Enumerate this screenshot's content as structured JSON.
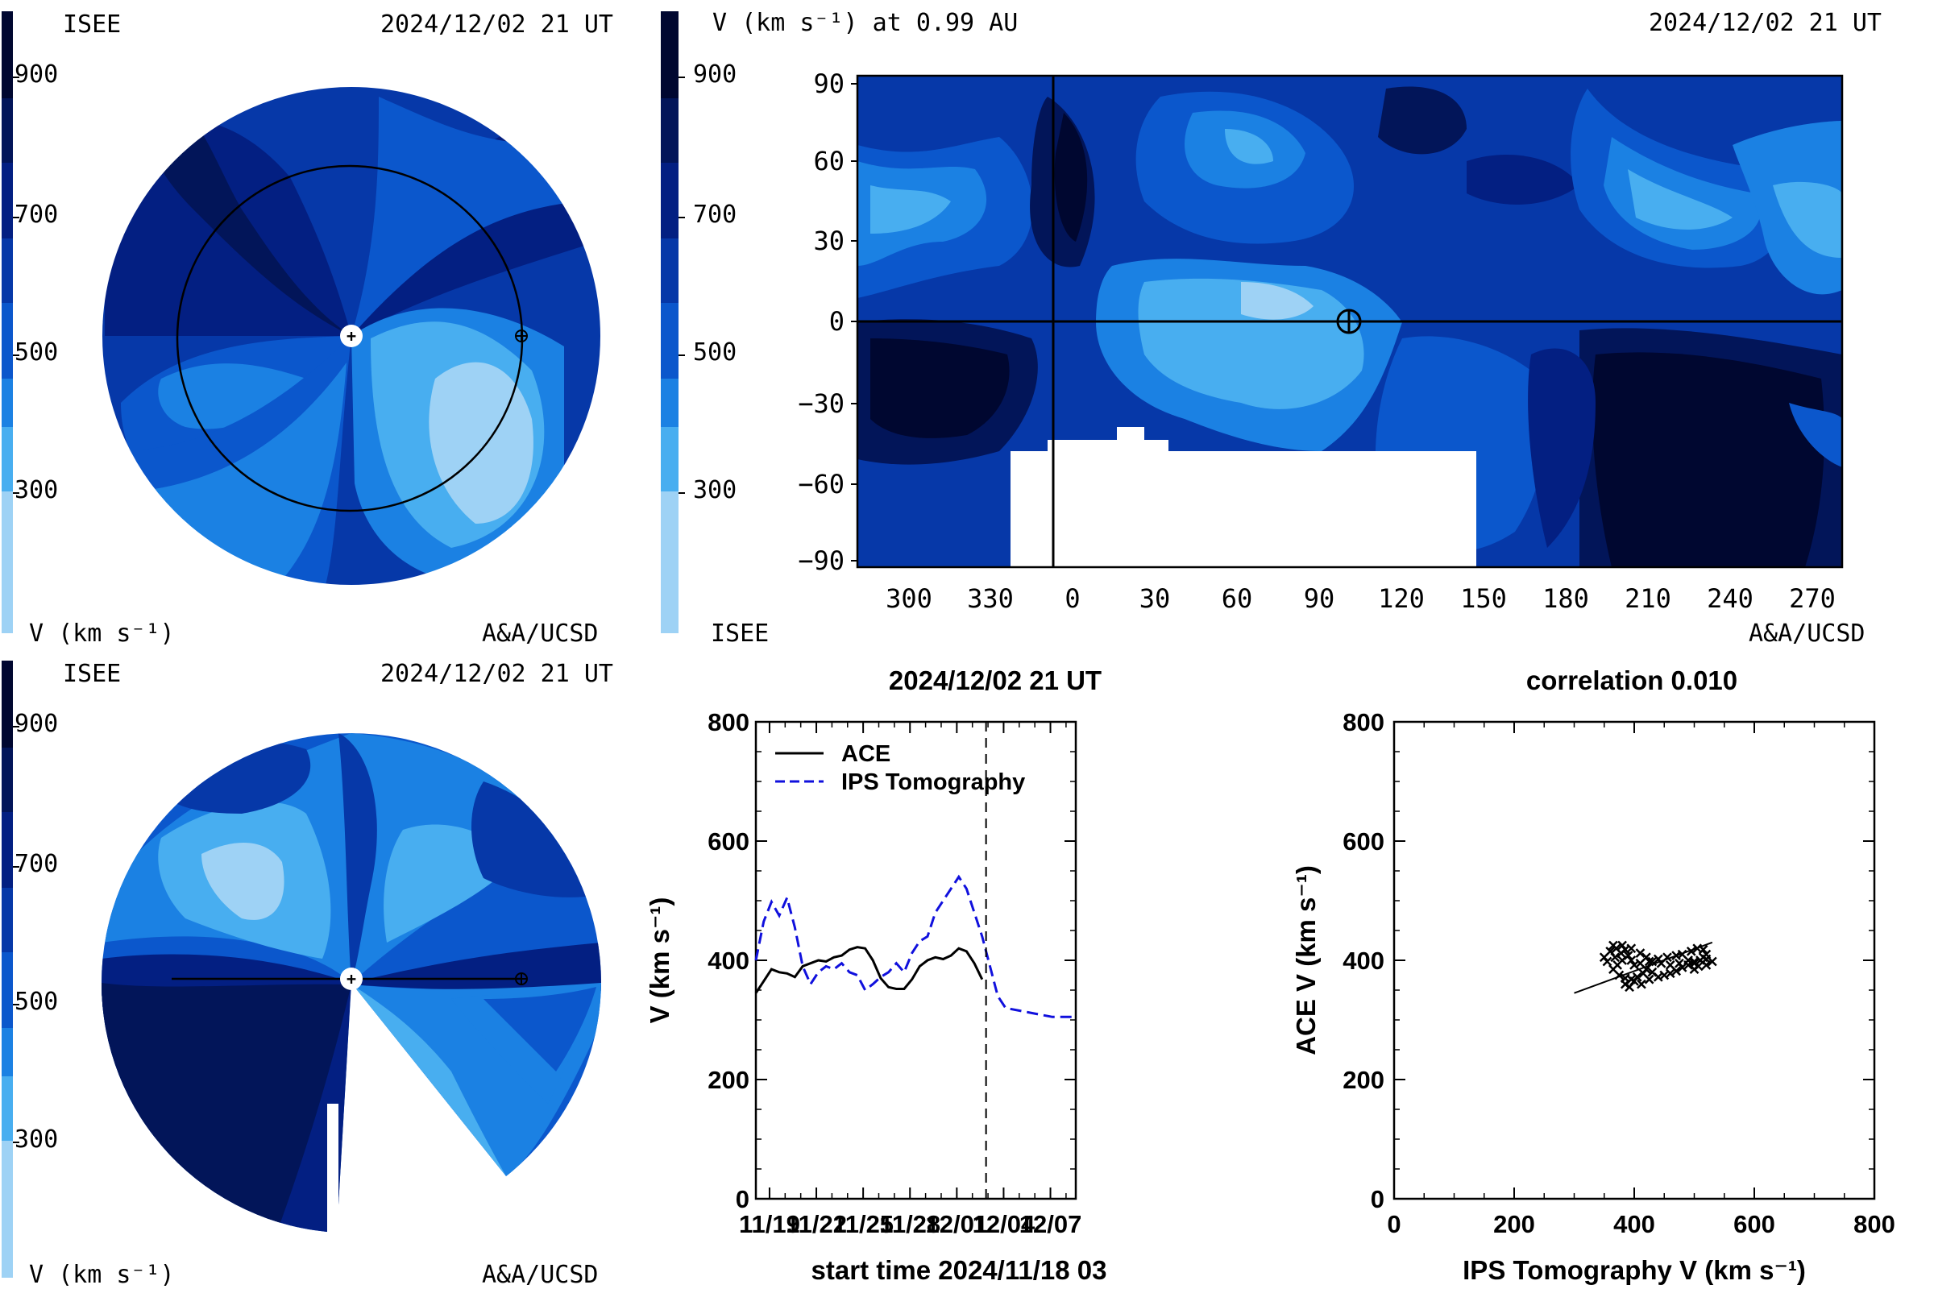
{
  "colors": {
    "band_200_300": "#9ed2f5",
    "band_300_400": "#48aef0",
    "band_400_500": "#1b81e3",
    "band_500_600": "#0b57cc",
    "band_600_700": "#0638a8",
    "band_700_800": "#031f82",
    "band_800_900": "#021559",
    "band_900_plus": "#000730",
    "ace_line": "#000000",
    "ips_line": "#1010dd"
  },
  "colorbar": {
    "ticks": [
      "900",
      "700",
      "500",
      "300"
    ]
  },
  "panel_top_left": {
    "org": "ISEE",
    "timestamp": "2024/12/02 21 UT",
    "unit_label": "V (km s⁻¹)",
    "credit": "A&A/UCSD"
  },
  "panel_bottom_left": {
    "org": "ISEE",
    "timestamp": "2024/12/02 21 UT",
    "unit_label": "V (km s⁻¹)",
    "credit": "A&A/UCSD"
  },
  "panel_top_right": {
    "title": "V (km s⁻¹) at 0.99 AU",
    "timestamp": "2024/12/02 21 UT",
    "org": "ISEE",
    "credit": "A&A/UCSD"
  },
  "chart_data": [
    {
      "type": "heatmap",
      "title": "V (km s⁻¹) at 0.99 AU",
      "x_ticks": [
        "300",
        "330",
        "0",
        "30",
        "60",
        "90",
        "120",
        "150",
        "180",
        "210",
        "240",
        "270"
      ],
      "y_ticks": [
        "90",
        "60",
        "30",
        "0",
        "−30",
        "−60",
        "−90"
      ],
      "earth_marker": {
        "longitude": 100,
        "latitude": 0
      },
      "colorbar_ticks": [
        900,
        700,
        500,
        300
      ]
    },
    {
      "type": "line",
      "title": "2024/12/02 21 UT",
      "xlabel": "start time 2024/11/18 03",
      "ylabel": "V (km s⁻¹)",
      "ylim": [
        0,
        800
      ],
      "xlim": [
        0,
        20.5
      ],
      "x_tick_labels": [
        "11/19",
        "11/22",
        "11/25",
        "11/28",
        "12/01",
        "12/04",
        "12/07"
      ],
      "x_tick_values": [
        0.875,
        3.875,
        6.875,
        9.875,
        12.875,
        15.875,
        18.875
      ],
      "y_tick_labels": [
        "0",
        "200",
        "400",
        "600",
        "800"
      ],
      "current_time_x": 14.75,
      "legend_position": "top-left",
      "series": [
        {
          "name": "ACE",
          "style": "solid",
          "x": [
            0,
            0.5,
            1,
            1.5,
            2,
            2.5,
            3,
            3.5,
            4,
            4.5,
            5,
            5.5,
            6,
            6.5,
            7,
            7.5,
            8,
            8.5,
            9,
            9.5,
            10,
            10.5,
            11,
            11.5,
            12,
            12.5,
            13,
            13.5,
            14,
            14.5
          ],
          "values": [
            345,
            365,
            385,
            380,
            378,
            372,
            390,
            395,
            400,
            398,
            405,
            408,
            418,
            422,
            420,
            400,
            370,
            355,
            352,
            352,
            368,
            390,
            400,
            405,
            402,
            408,
            420,
            415,
            395,
            368
          ]
        },
        {
          "name": "IPS Tomography",
          "style": "dashed",
          "x": [
            0,
            0.5,
            1,
            1.5,
            2,
            2.5,
            3,
            3.5,
            4,
            4.5,
            5,
            5.5,
            6,
            6.5,
            7,
            7.5,
            8,
            8.5,
            9,
            9.5,
            10,
            10.5,
            11,
            11.5,
            12,
            12.5,
            13,
            13.5,
            14,
            14.5,
            15,
            15.5,
            16,
            17,
            18,
            19,
            20,
            20.5
          ],
          "values": [
            400,
            465,
            498,
            475,
            505,
            455,
            390,
            360,
            380,
            390,
            385,
            395,
            380,
            375,
            350,
            360,
            372,
            380,
            395,
            380,
            412,
            432,
            440,
            480,
            500,
            520,
            540,
            520,
            480,
            440,
            390,
            340,
            320,
            315,
            310,
            305,
            305,
            305
          ]
        }
      ]
    },
    {
      "type": "scatter",
      "title": "correlation 0.010",
      "xlabel": "IPS Tomography V (km s⁻¹)",
      "ylabel": "ACE V (km s⁻¹)",
      "xlim": [
        0,
        800
      ],
      "ylim": [
        0,
        800
      ],
      "x_tick_labels": [
        "0",
        "200",
        "400",
        "600",
        "800"
      ],
      "y_tick_labels": [
        "0",
        "200",
        "400",
        "600",
        "800"
      ],
      "points": [
        [
          350,
          405
        ],
        [
          360,
          415
        ],
        [
          365,
          425
        ],
        [
          370,
          420
        ],
        [
          378,
          412
        ],
        [
          380,
          400
        ],
        [
          372,
          392
        ],
        [
          365,
          385
        ],
        [
          375,
          375
        ],
        [
          385,
          370
        ],
        [
          395,
          368
        ],
        [
          405,
          372
        ],
        [
          415,
          378
        ],
        [
          420,
          385
        ],
        [
          430,
          380
        ],
        [
          440,
          372
        ],
        [
          450,
          375
        ],
        [
          460,
          378
        ],
        [
          470,
          382
        ],
        [
          480,
          388
        ],
        [
          490,
          392
        ],
        [
          500,
          398
        ],
        [
          510,
          400
        ],
        [
          515,
          405
        ],
        [
          520,
          410
        ],
        [
          515,
          418
        ],
        [
          505,
          420
        ],
        [
          495,
          415
        ],
        [
          480,
          410
        ],
        [
          470,
          408
        ],
        [
          455,
          405
        ],
        [
          440,
          402
        ],
        [
          425,
          398
        ],
        [
          410,
          395
        ],
        [
          400,
          392
        ],
        [
          395,
          400
        ],
        [
          390,
          408
        ],
        [
          385,
          418
        ],
        [
          380,
          425
        ],
        [
          395,
          420
        ],
        [
          410,
          412
        ],
        [
          420,
          405
        ],
        [
          430,
          398
        ],
        [
          445,
          395
        ],
        [
          460,
          392
        ],
        [
          475,
          395
        ],
        [
          490,
          400
        ],
        [
          500,
          395
        ],
        [
          385,
          360
        ],
        [
          392,
          355
        ],
        [
          400,
          365
        ],
        [
          412,
          360
        ],
        [
          425,
          368
        ],
        [
          500,
          385
        ],
        [
          507,
          390
        ],
        [
          520,
          392
        ],
        [
          530,
          398
        ],
        [
          520,
          402
        ],
        [
          355,
          398
        ],
        [
          368,
          405
        ]
      ],
      "fit_line": [
        [
          300,
          345
        ],
        [
          530,
          430
        ]
      ]
    }
  ]
}
